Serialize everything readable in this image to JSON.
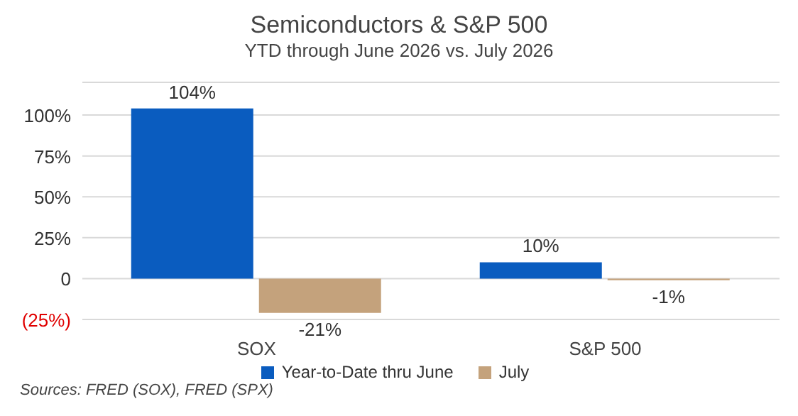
{
  "chart_data": {
    "type": "bar",
    "title": "Semiconductors & S&P 500",
    "subtitle": "YTD through June 2026 vs. July 2026",
    "categories": [
      "SOX",
      "S&P 500"
    ],
    "series": [
      {
        "name": "Year-to-Date thru June",
        "color": "#0a5cbf",
        "values": [
          104,
          10
        ],
        "value_labels": [
          "104%",
          "10%"
        ]
      },
      {
        "name": "July",
        "color": "#c4a27c",
        "values": [
          -21,
          -1
        ],
        "value_labels": [
          "-21%",
          "-1%"
        ]
      }
    ],
    "ylim": [
      -25,
      120
    ],
    "yticks": [
      {
        "value": -25,
        "label": "(25%)"
      },
      {
        "value": 0,
        "label": "0"
      },
      {
        "value": 25,
        "label": "25%"
      },
      {
        "value": 50,
        "label": "50%"
      },
      {
        "value": 75,
        "label": "75%"
      },
      {
        "value": 100,
        "label": "100%"
      }
    ],
    "grid": "y",
    "legend": "bottom",
    "annotations": [
      "Sources: FRED (SOX), FRED (SPX)"
    ]
  }
}
